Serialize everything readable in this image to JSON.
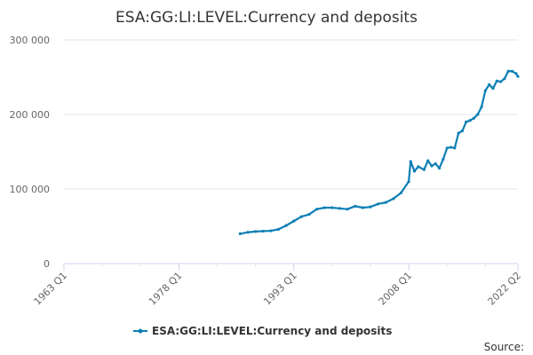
{
  "chart_data": {
    "type": "line",
    "title": "ESA:GG:LI:LEVEL:Currency and deposits",
    "xlabel": "",
    "ylabel": "",
    "x_categories": [
      "1963 Q1",
      "1978 Q1",
      "1993 Q1",
      "2008 Q1",
      "2022 Q2"
    ],
    "xlim": [
      "1963 Q1",
      "2022 Q2"
    ],
    "ylim": [
      0,
      300000
    ],
    "yticks": [
      0,
      100000,
      200000,
      300000
    ],
    "ytick_labels": [
      "0",
      "100 000",
      "200 000",
      "300 000"
    ],
    "grid": true,
    "legend_position": "bottom",
    "credits": "Source:",
    "series": [
      {
        "name": "ESA:GG:LI:LEVEL:Currency and deposits",
        "color": "#0d7fb5",
        "points": [
          [
            "1986 Q1",
            40000
          ],
          [
            "1987 Q1",
            42000
          ],
          [
            "1988 Q1",
            43000
          ],
          [
            "1989 Q1",
            43500
          ],
          [
            "1990 Q1",
            44000
          ],
          [
            "1991 Q1",
            46000
          ],
          [
            "1992 Q1",
            51000
          ],
          [
            "1993 Q1",
            57000
          ],
          [
            "1994 Q1",
            63000
          ],
          [
            "1995 Q1",
            66000
          ],
          [
            "1996 Q1",
            73000
          ],
          [
            "1997 Q1",
            75000
          ],
          [
            "1998 Q1",
            75000
          ],
          [
            "1999 Q1",
            74000
          ],
          [
            "2000 Q1",
            73000
          ],
          [
            "2001 Q1",
            77000
          ],
          [
            "2002 Q1",
            75000
          ],
          [
            "2003 Q1",
            76000
          ],
          [
            "2004 Q1",
            80000
          ],
          [
            "2005 Q1",
            82000
          ],
          [
            "2006 Q1",
            87000
          ],
          [
            "2007 Q1",
            95000
          ],
          [
            "2008 Q1",
            110000
          ],
          [
            "2008 Q2",
            137000
          ],
          [
            "2008 Q4",
            124000
          ],
          [
            "2009 Q2",
            130000
          ],
          [
            "2010 Q1",
            126000
          ],
          [
            "2010 Q3",
            138000
          ],
          [
            "2011 Q1",
            131000
          ],
          [
            "2011 Q3",
            134000
          ],
          [
            "2012 Q1",
            128000
          ],
          [
            "2012 Q3",
            140000
          ],
          [
            "2013 Q1",
            155000
          ],
          [
            "2013 Q3",
            156000
          ],
          [
            "2014 Q1",
            155000
          ],
          [
            "2014 Q3",
            175000
          ],
          [
            "2015 Q1",
            178000
          ],
          [
            "2015 Q3",
            190000
          ],
          [
            "2016 Q1",
            192000
          ],
          [
            "2016 Q3",
            195000
          ],
          [
            "2017 Q1",
            200000
          ],
          [
            "2017 Q3",
            210000
          ],
          [
            "2018 Q1",
            232000
          ],
          [
            "2018 Q3",
            240000
          ],
          [
            "2019 Q1",
            235000
          ],
          [
            "2019 Q3",
            245000
          ],
          [
            "2020 Q1",
            244000
          ],
          [
            "2020 Q3",
            248000
          ],
          [
            "2021 Q1",
            258000
          ],
          [
            "2021 Q3",
            258000
          ],
          [
            "2022 Q1",
            255000
          ],
          [
            "2022 Q2",
            251000
          ]
        ]
      }
    ]
  }
}
